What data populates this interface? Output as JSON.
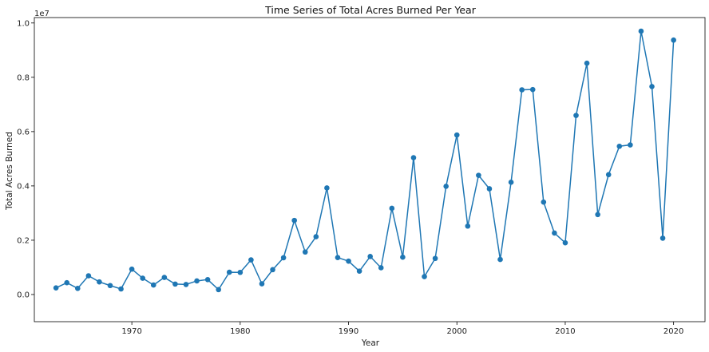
{
  "chart_data": {
    "type": "line",
    "title": "Time Series of Total Acres Burned Per Year",
    "xlabel": "Year",
    "ylabel": "Total Acres Burned",
    "y_offset_label": "1e7",
    "xlim": [
      1961.0,
      2022.9
    ],
    "ylim": [
      -0.1,
      1.02
    ],
    "y_scale_multiplier": 10000000,
    "x_ticks": [
      1970,
      1980,
      1990,
      2000,
      2010,
      2020
    ],
    "y_ticks": [
      0.0,
      0.2,
      0.4,
      0.6,
      0.8,
      1.0
    ],
    "y_tick_labels": [
      "0.0",
      "0.2",
      "0.4",
      "0.6",
      "0.8",
      "1.0"
    ],
    "grid": false,
    "color": "#1f77b4",
    "series": [
      {
        "x": [
          1963,
          1964,
          1965,
          1966,
          1967,
          1968,
          1969,
          1970,
          1971,
          1972,
          1973,
          1974,
          1975,
          1976,
          1977,
          1978,
          1979,
          1980,
          1981,
          1982,
          1983,
          1984,
          1985,
          1986,
          1987,
          1988,
          1989,
          1990,
          1991,
          1992,
          1993,
          1994,
          1995,
          1996,
          1997,
          1998,
          1999,
          2000,
          2001,
          2002,
          2003,
          2004,
          2005,
          2006,
          2007,
          2008,
          2009,
          2010,
          2011,
          2012,
          2013,
          2014,
          2015,
          2016,
          2017,
          2018,
          2019,
          2020
        ],
        "values": [
          0.0245,
          0.0435,
          0.0225,
          0.069,
          0.0465,
          0.033,
          0.0205,
          0.0935,
          0.06,
          0.035,
          0.063,
          0.0385,
          0.037,
          0.05,
          0.055,
          0.018,
          0.082,
          0.0815,
          0.1275,
          0.0395,
          0.0915,
          0.1355,
          0.273,
          0.1565,
          0.213,
          0.3925,
          0.136,
          0.123,
          0.086,
          0.14,
          0.0985,
          0.3175,
          0.1375,
          0.504,
          0.066,
          0.133,
          0.3985,
          0.5875,
          0.252,
          0.439,
          0.3895,
          0.129,
          0.4135,
          0.754,
          0.755,
          0.3405,
          0.2265,
          0.1905,
          0.6595,
          0.852,
          0.2945,
          0.4415,
          0.546,
          0.551,
          0.97,
          0.766,
          0.2075,
          0.937
        ]
      }
    ]
  }
}
